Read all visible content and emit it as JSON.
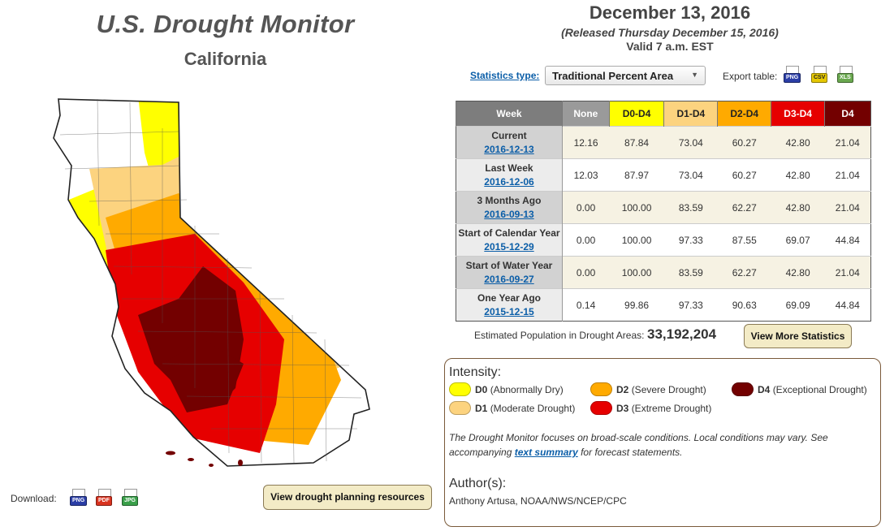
{
  "header": {
    "title": "U.S. Drought Monitor",
    "region": "California",
    "date": "December 13, 2016",
    "released": "(Released Thursday December 15, 2016)",
    "valid": "Valid 7 a.m. EST"
  },
  "controls": {
    "stats_type_label": "Statistics type:",
    "stats_type_value": "Traditional Percent Area",
    "export_label": "Export table:",
    "export_formats": [
      "PNG",
      "CSV",
      "XLS"
    ]
  },
  "table": {
    "headers": [
      "Week",
      "None",
      "D0-D4",
      "D1-D4",
      "D2-D4",
      "D3-D4",
      "D4"
    ],
    "rows": [
      {
        "label": "Current",
        "date": "2016-12-13",
        "values": [
          "12.16",
          "87.84",
          "73.04",
          "60.27",
          "42.80",
          "21.04"
        ]
      },
      {
        "label": "Last Week",
        "date": "2016-12-06",
        "values": [
          "12.03",
          "87.97",
          "73.04",
          "60.27",
          "42.80",
          "21.04"
        ]
      },
      {
        "label": "3 Months Ago",
        "date": "2016-09-13",
        "values": [
          "0.00",
          "100.00",
          "83.59",
          "62.27",
          "42.80",
          "21.04"
        ]
      },
      {
        "label": "Start of Calendar Year",
        "date": "2015-12-29",
        "values": [
          "0.00",
          "100.00",
          "97.33",
          "87.55",
          "69.07",
          "44.84"
        ]
      },
      {
        "label": "Start of Water Year",
        "date": "2016-09-27",
        "values": [
          "0.00",
          "100.00",
          "83.59",
          "62.27",
          "42.80",
          "21.04"
        ]
      },
      {
        "label": "One Year Ago",
        "date": "2015-12-15",
        "values": [
          "0.14",
          "99.86",
          "97.33",
          "90.63",
          "69.09",
          "44.84"
        ]
      }
    ]
  },
  "population": {
    "label": "Estimated Population in Drought Areas:",
    "value": "33,192,204"
  },
  "buttons": {
    "more_stats": "View More Statistics",
    "planning": "View drought planning resources"
  },
  "legend": {
    "heading": "Intensity:",
    "items": [
      {
        "code": "D0",
        "desc": "(Abnormally Dry)",
        "color": "#ffff00"
      },
      {
        "code": "D1",
        "desc": "(Moderate Drought)",
        "color": "#fcd37f"
      },
      {
        "code": "D2",
        "desc": "(Severe Drought)",
        "color": "#ffaa00"
      },
      {
        "code": "D3",
        "desc": "(Extreme Drought)",
        "color": "#e60000"
      },
      {
        "code": "D4",
        "desc": "(Exceptional Drought)",
        "color": "#730000"
      }
    ],
    "note_before": "The Drought Monitor focuses on broad-scale conditions. Local conditions may vary. See accompanying ",
    "note_link": "text summary",
    "note_after": " for forecast statements."
  },
  "authors": {
    "heading": "Author(s):",
    "names": "Anthony Artusa, NOAA/NWS/NCEP/CPC"
  },
  "download": {
    "label": "Download:",
    "formats": [
      "PNG",
      "PDF",
      "JPG"
    ]
  },
  "colors": {
    "header_week": "#7d7d7d",
    "header_none": "#9a9a9a",
    "d0": "#ffff00",
    "d1": "#fcd37f",
    "d2": "#ffaa00",
    "d3": "#e60000",
    "d4": "#730000",
    "link": "#0b5ea8"
  }
}
